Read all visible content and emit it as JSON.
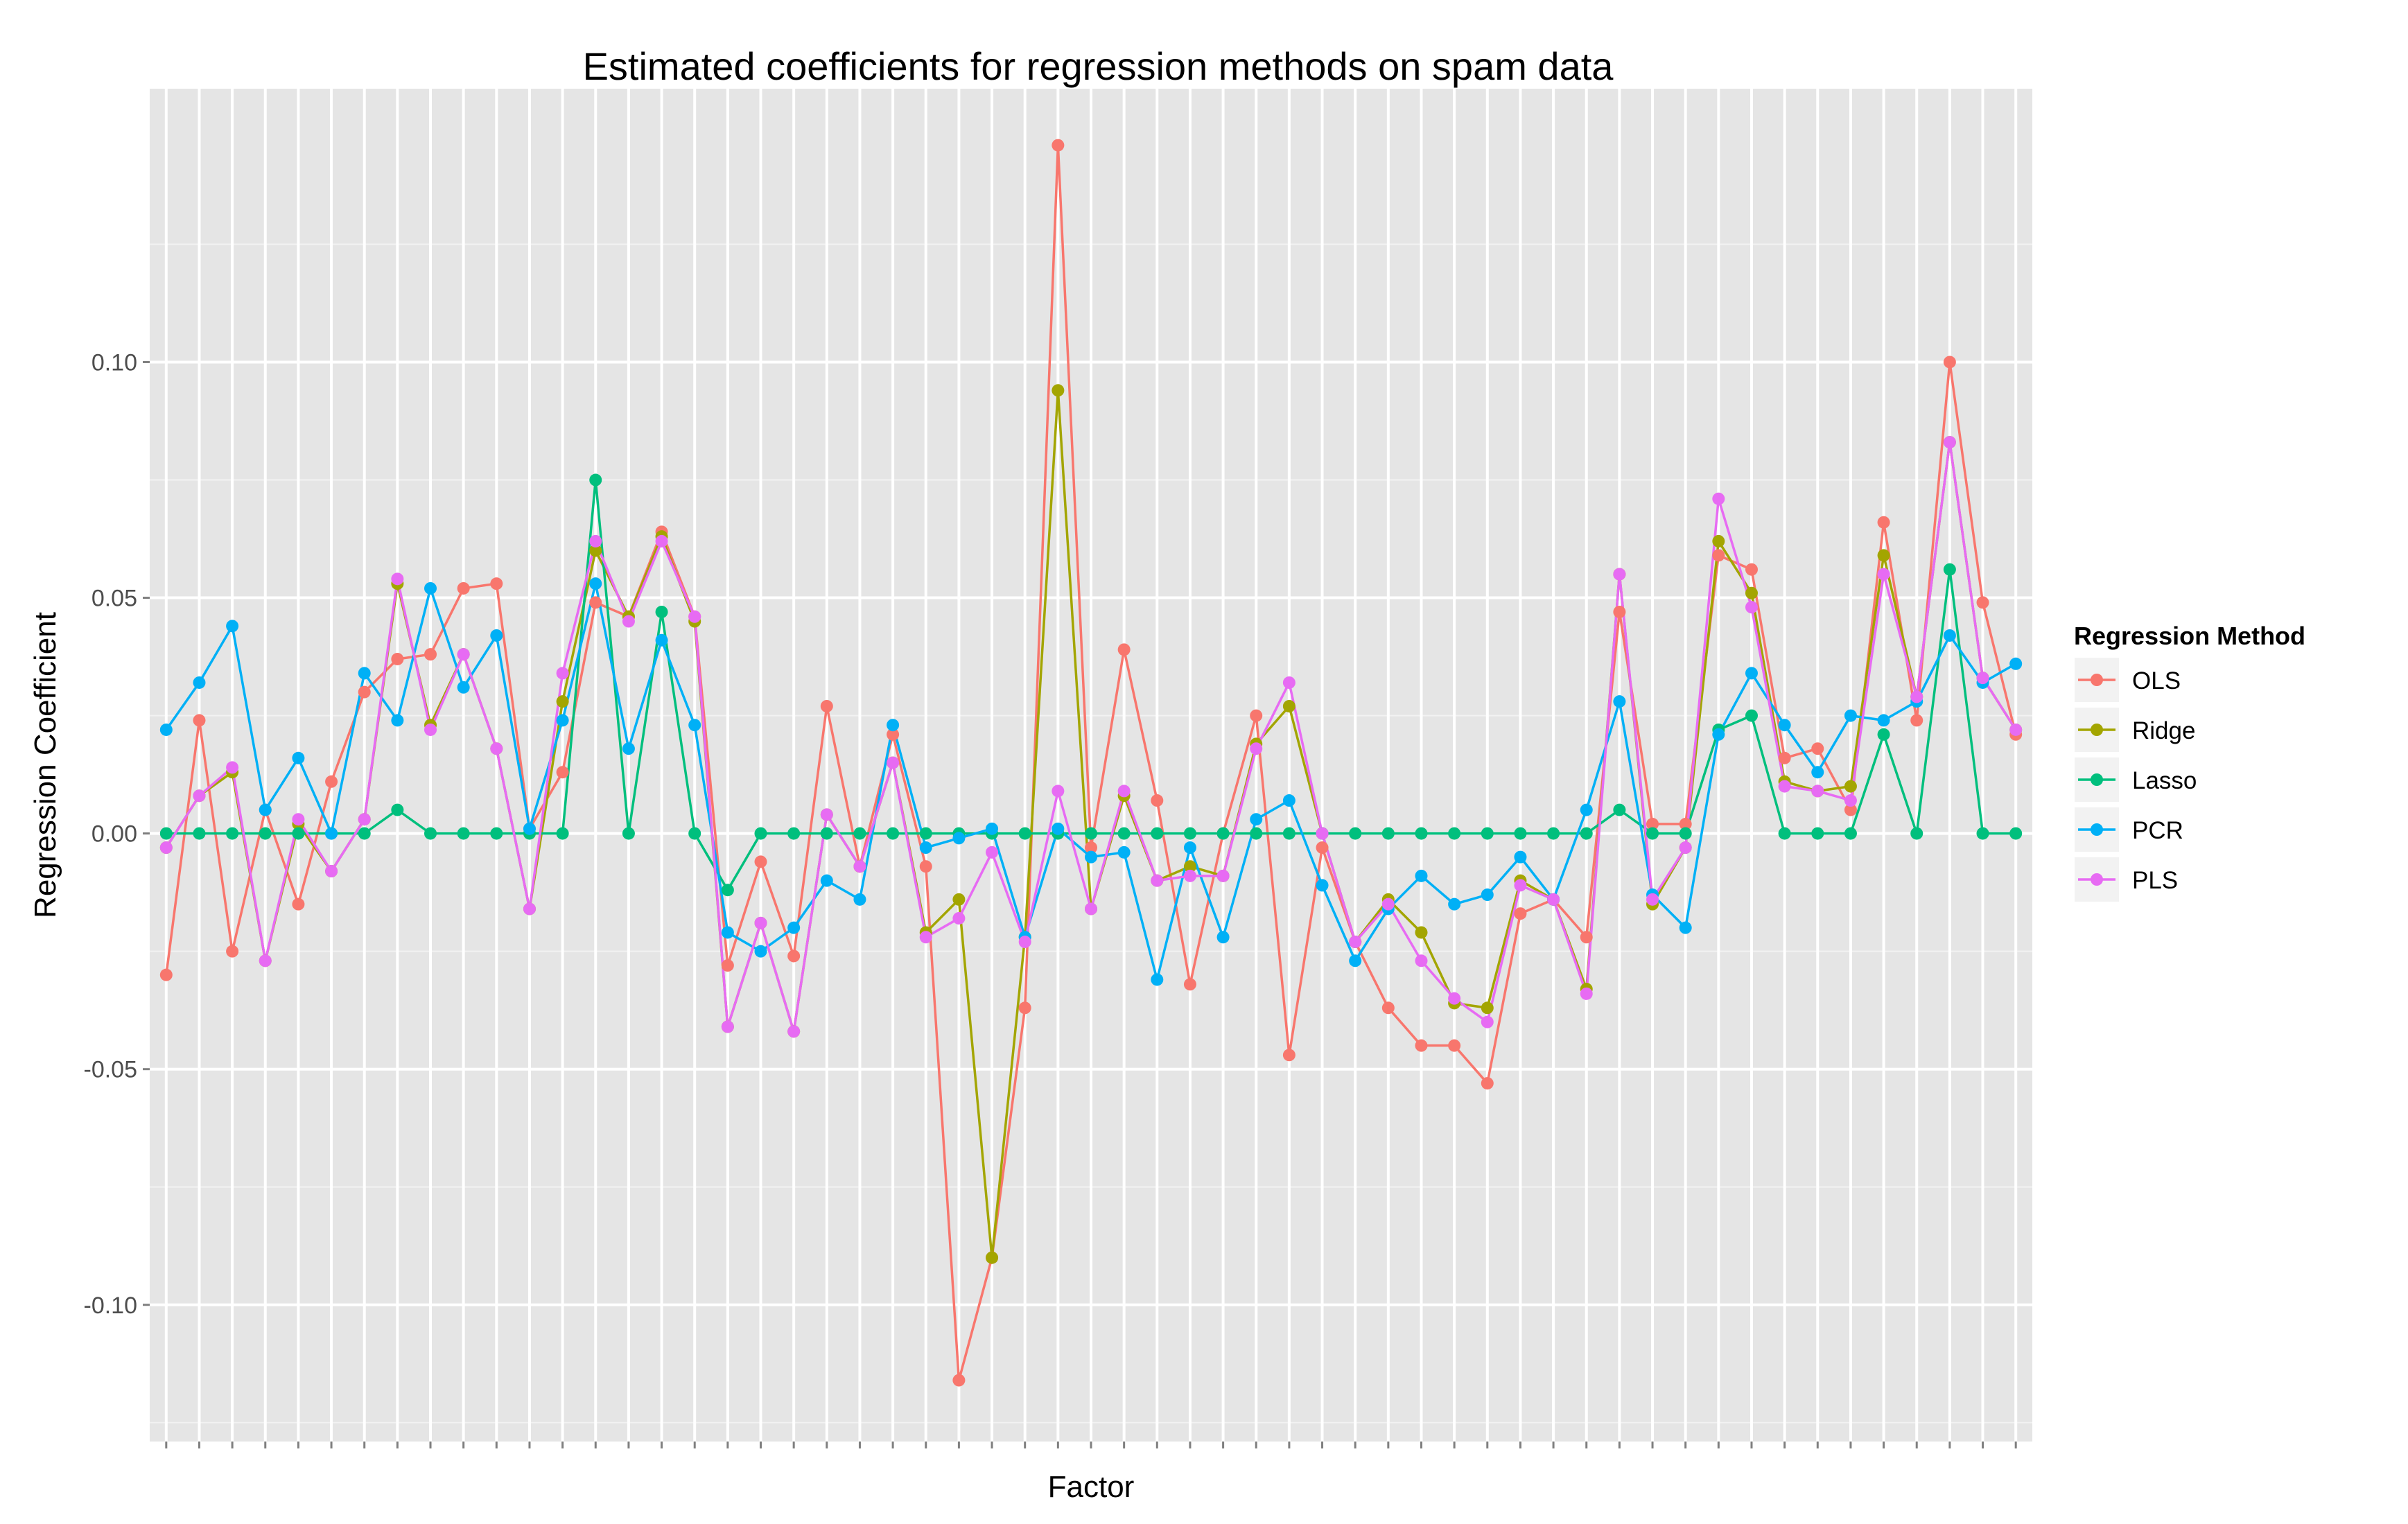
{
  "chart_data": {
    "type": "line",
    "title": "Estimated coefficients for regression methods on spam data",
    "xlabel": "Factor",
    "ylabel": "Regression Coefficient",
    "xlim": [
      0.5,
      57.5
    ],
    "ylim": [
      -0.129,
      0.158
    ],
    "y_ticks": [
      -0.1,
      -0.05,
      0.0,
      0.05,
      0.1
    ],
    "y_tick_labels": [
      "-0.10",
      "-0.05",
      "0.00",
      "0.05",
      "0.10"
    ],
    "grid": true,
    "legend": {
      "title": "Regression Method",
      "position": "right"
    },
    "x": [
      1,
      2,
      3,
      4,
      5,
      6,
      7,
      8,
      9,
      10,
      11,
      12,
      13,
      14,
      15,
      16,
      17,
      18,
      19,
      20,
      21,
      22,
      23,
      24,
      25,
      26,
      27,
      28,
      29,
      30,
      31,
      32,
      33,
      34,
      35,
      36,
      37,
      38,
      39,
      40,
      41,
      42,
      43,
      44,
      45,
      46,
      47,
      48,
      49,
      50,
      51,
      52,
      53,
      54,
      55,
      56,
      57
    ],
    "series": [
      {
        "name": "OLS",
        "color": "#F8766D",
        "values": [
          -0.03,
          0.024,
          -0.025,
          0.005,
          -0.015,
          0.011,
          0.03,
          0.037,
          0.038,
          0.052,
          0.053,
          0.001,
          0.013,
          0.049,
          0.046,
          0.064,
          0.046,
          -0.028,
          -0.006,
          -0.026,
          0.027,
          -0.007,
          0.021,
          -0.007,
          -0.116,
          -0.09,
          -0.037,
          0.146,
          -0.003,
          0.039,
          0.007,
          -0.032,
          0.0,
          0.025,
          -0.047,
          -0.003,
          -0.023,
          -0.037,
          -0.045,
          -0.045,
          -0.053,
          -0.017,
          -0.014,
          -0.022,
          0.047,
          0.002,
          0.002,
          0.059,
          0.056,
          0.016,
          0.018,
          0.005,
          0.066,
          0.024,
          0.1,
          0.049,
          0.021
        ]
      },
      {
        "name": "Ridge",
        "color": "#A3A500",
        "values": [
          -0.003,
          0.008,
          0.013,
          -0.027,
          0.002,
          -0.008,
          0.003,
          0.053,
          0.023,
          0.038,
          0.018,
          -0.016,
          0.028,
          0.06,
          0.046,
          0.063,
          0.045,
          -0.041,
          -0.019,
          -0.042,
          0.004,
          -0.007,
          0.015,
          -0.021,
          -0.014,
          -0.09,
          -0.022,
          0.094,
          -0.016,
          0.008,
          -0.01,
          -0.007,
          -0.009,
          0.019,
          0.027,
          0.0,
          -0.023,
          -0.014,
          -0.021,
          -0.036,
          -0.037,
          -0.01,
          -0.014,
          -0.033,
          0.055,
          -0.015,
          -0.003,
          0.062,
          0.051,
          0.011,
          0.009,
          0.01,
          0.059,
          0.029,
          0.083,
          0.033,
          0.022
        ]
      },
      {
        "name": "Lasso",
        "color": "#00BF7D",
        "values": [
          0.0,
          0.0,
          0.0,
          0.0,
          0.0,
          0.0,
          0.0,
          0.005,
          0.0,
          0.0,
          0.0,
          0.0,
          0.0,
          0.075,
          0.0,
          0.047,
          0.0,
          -0.012,
          0.0,
          0.0,
          0.0,
          0.0,
          0.0,
          0.0,
          0.0,
          0.0,
          0.0,
          0.0,
          0.0,
          0.0,
          0.0,
          0.0,
          0.0,
          0.0,
          0.0,
          0.0,
          0.0,
          0.0,
          0.0,
          0.0,
          0.0,
          0.0,
          0.0,
          0.0,
          0.005,
          0.0,
          0.0,
          0.022,
          0.025,
          0.0,
          0.0,
          0.0,
          0.021,
          0.0,
          0.056,
          0.0,
          0.0
        ]
      },
      {
        "name": "PCR",
        "color": "#00B0F6",
        "values": [
          0.022,
          0.032,
          0.044,
          0.005,
          0.016,
          0.0,
          0.034,
          0.024,
          0.052,
          0.031,
          0.042,
          0.001,
          0.024,
          0.053,
          0.018,
          0.041,
          0.023,
          -0.021,
          -0.025,
          -0.02,
          -0.01,
          -0.014,
          0.023,
          -0.003,
          -0.001,
          0.001,
          -0.022,
          0.001,
          -0.005,
          -0.004,
          -0.031,
          -0.003,
          -0.022,
          0.003,
          0.007,
          -0.011,
          -0.027,
          -0.016,
          -0.009,
          -0.015,
          -0.013,
          -0.005,
          -0.014,
          0.005,
          0.028,
          -0.013,
          -0.02,
          0.021,
          0.034,
          0.023,
          0.013,
          0.025,
          0.024,
          0.028,
          0.042,
          0.032,
          0.036
        ]
      },
      {
        "name": "PLS",
        "color": "#E76BF3",
        "values": [
          -0.003,
          0.008,
          0.014,
          -0.027,
          0.003,
          -0.008,
          0.003,
          0.054,
          0.022,
          0.038,
          0.018,
          -0.016,
          0.034,
          0.062,
          0.045,
          0.062,
          0.046,
          -0.041,
          -0.019,
          -0.042,
          0.004,
          -0.007,
          0.015,
          -0.022,
          -0.018,
          -0.004,
          -0.023,
          0.009,
          -0.016,
          0.009,
          -0.01,
          -0.009,
          -0.009,
          0.018,
          0.032,
          0.0,
          -0.023,
          -0.015,
          -0.027,
          -0.035,
          -0.04,
          -0.011,
          -0.014,
          -0.034,
          0.055,
          -0.014,
          -0.003,
          0.071,
          0.048,
          0.01,
          0.009,
          0.007,
          0.055,
          0.029,
          0.083,
          0.033,
          0.022
        ]
      }
    ]
  }
}
